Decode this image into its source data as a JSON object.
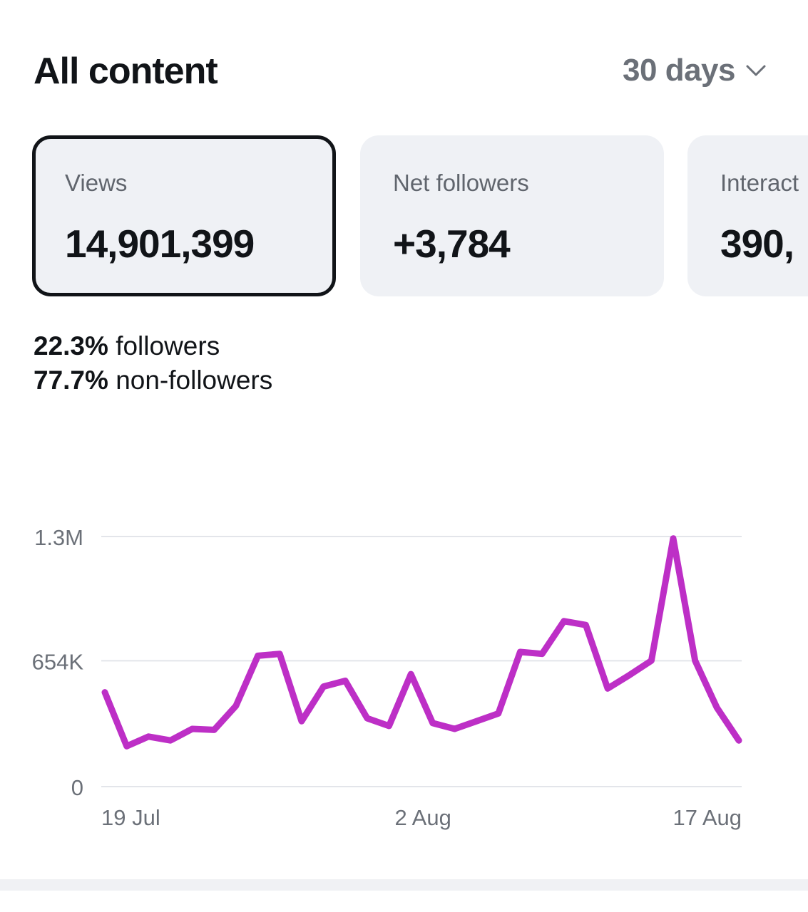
{
  "header": {
    "title": "All content",
    "range_label": "30 days",
    "range_icon": "chevron-down-icon"
  },
  "cards": [
    {
      "label": "Views",
      "value": "14,901,399",
      "selected": true
    },
    {
      "label": "Net followers",
      "value": "+3,784",
      "selected": false
    },
    {
      "label": "Interact",
      "value": "390,",
      "selected": false
    }
  ],
  "audience": {
    "followers_pct": "22.3%",
    "followers_text": "followers",
    "nonfollowers_pct": "77.7%",
    "nonfollowers_text": "non-followers"
  },
  "colors": {
    "line": "#bd2fc6",
    "text": "#111418",
    "muted": "#6b7078",
    "card_bg": "#eff1f5"
  },
  "chart_data": {
    "type": "line",
    "ylim": [
      0,
      1300000
    ],
    "y_ticks": [
      {
        "value": 0,
        "label": "0"
      },
      {
        "value": 654000,
        "label": "654K"
      },
      {
        "value": 1300000,
        "label": "1.3M"
      }
    ],
    "x_ticks": [
      {
        "label": "19 Jul",
        "index": 0
      },
      {
        "label": "2 Aug",
        "index": 14
      },
      {
        "label": "17 Aug",
        "index": 29
      }
    ],
    "series": [
      {
        "values": [
          490000,
          210000,
          260000,
          240000,
          300000,
          295000,
          420000,
          680000,
          690000,
          340000,
          520000,
          550000,
          355000,
          315000,
          585000,
          330000,
          300000,
          340000,
          380000,
          700000,
          690000,
          860000,
          840000,
          510000,
          580000,
          655000,
          1290000,
          655000,
          410000,
          240000
        ]
      }
    ],
    "grid": true,
    "legend": "none"
  }
}
